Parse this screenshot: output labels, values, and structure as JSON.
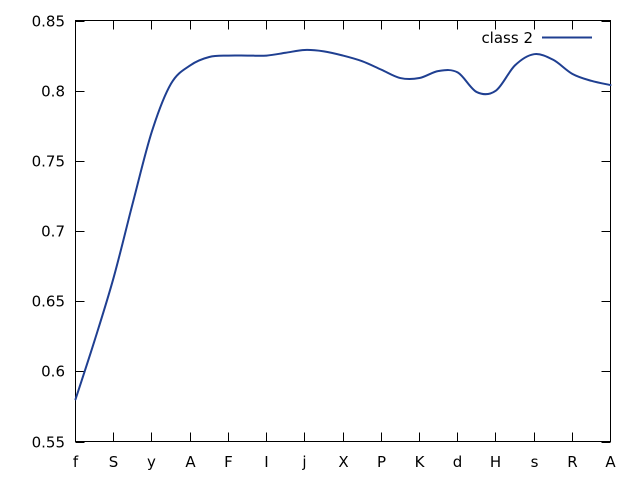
{
  "chart_data": {
    "type": "line",
    "title": "",
    "xlabel": "",
    "ylabel": "",
    "categories": [
      "f",
      "S",
      "y",
      "A",
      "F",
      "I",
      "j",
      "X",
      "P",
      "K",
      "d",
      "H",
      "s",
      "R",
      "A"
    ],
    "ylim": [
      0.55,
      0.85
    ],
    "yticks": [
      0.55,
      0.6,
      0.65,
      0.7,
      0.75,
      0.8,
      0.85
    ],
    "ytick_labels": [
      "0.55",
      "0.6",
      "0.65",
      "0.7",
      "0.75",
      "0.8",
      "0.85"
    ],
    "grid": false,
    "legend_position": "top-right",
    "series": [
      {
        "name": "class 2",
        "color": "#1f3f91",
        "x": [
          0,
          0.5,
          1,
          1.5,
          2,
          2.5,
          3,
          3.5,
          4,
          4.5,
          5,
          5.5,
          6,
          6.5,
          7,
          7.5,
          8,
          8.5,
          9,
          9.5,
          10,
          10.5,
          11,
          11.5,
          12,
          12.5,
          13,
          13.5,
          14
        ],
        "values": [
          0.58,
          0.622,
          0.667,
          0.72,
          0.771,
          0.805,
          0.818,
          0.824,
          0.825,
          0.825,
          0.825,
          0.827,
          0.829,
          0.828,
          0.825,
          0.821,
          0.815,
          0.809,
          0.809,
          0.814,
          0.813,
          0.799,
          0.8,
          0.818,
          0.826,
          0.822,
          0.812,
          0.807,
          0.804
        ]
      }
    ]
  }
}
